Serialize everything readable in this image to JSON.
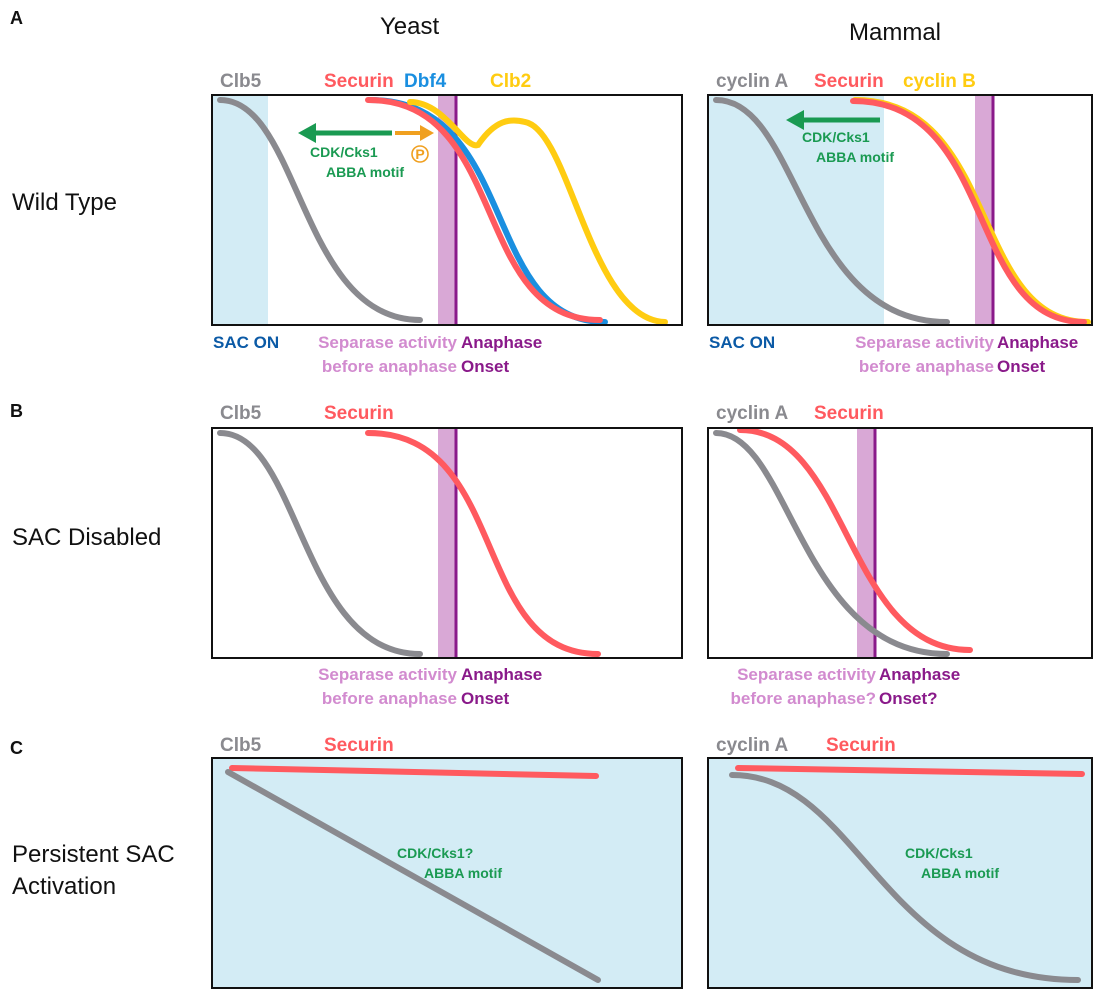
{
  "colors": {
    "clb5": "#8a8a8f",
    "securin": "#ff5a5f",
    "dbf4": "#1a8fe0",
    "clb2": "#ffcc11",
    "sac_blue": "#d3ecf5",
    "separase_band": "#d9a8d6",
    "anaphase_line": "#8a1a8a",
    "sac_on_text": "#0b5aa6",
    "separase_text": "#d28bcf",
    "anaphase_text": "#8a1a8a",
    "cdk_text": "#1a9a52",
    "phospho": "#f0a020"
  },
  "columns": {
    "yeast": "Yeast",
    "mammal": "Mammal"
  },
  "panels": {
    "A": {
      "letter": "A",
      "row_label": "Wild Type",
      "yeast": {
        "labels": {
          "clb5": "Clb5",
          "securin": "Securin",
          "dbf4": "Dbf4",
          "clb2": "Clb2"
        },
        "cdk_line1": "CDK/Cks1",
        "cdk_line2": "ABBA motif",
        "phospho": "P",
        "sac_on": "SAC ON",
        "separase1": "Separase activity",
        "separase2": "before anaphase",
        "anaphase1": "Anaphase",
        "anaphase2": "Onset"
      },
      "mammal": {
        "labels": {
          "cyclinA": "cyclin A",
          "securin": "Securin",
          "cyclinB": "cyclin B"
        },
        "cdk_line1": "CDK/Cks1",
        "cdk_line2": "ABBA motif",
        "sac_on": "SAC ON",
        "separase1": "Separase activity",
        "separase2": "before anaphase",
        "anaphase1": "Anaphase",
        "anaphase2": "Onset"
      }
    },
    "B": {
      "letter": "B",
      "row_label": "SAC Disabled",
      "yeast": {
        "labels": {
          "clb5": "Clb5",
          "securin": "Securin"
        },
        "separase1": "Separase activity",
        "separase2": "before anaphase",
        "anaphase1": "Anaphase",
        "anaphase2": "Onset"
      },
      "mammal": {
        "labels": {
          "cyclinA": "cyclin A",
          "securin": "Securin"
        },
        "separase1": "Separase activity",
        "separase2": "before anaphase?",
        "anaphase1": "Anaphase",
        "anaphase2": "Onset?"
      }
    },
    "C": {
      "letter": "C",
      "row_label_1": "Persistent SAC",
      "row_label_2": "Activation",
      "yeast": {
        "labels": {
          "clb5": "Clb5",
          "securin": "Securin"
        },
        "cdk_line1": "CDK/Cks1?",
        "cdk_line2": "ABBA motif"
      },
      "mammal": {
        "labels": {
          "cyclinA": "cyclin A",
          "securin": "Securin"
        },
        "cdk_line1": "CDK/Cks1",
        "cdk_line2": "ABBA motif"
      }
    }
  }
}
